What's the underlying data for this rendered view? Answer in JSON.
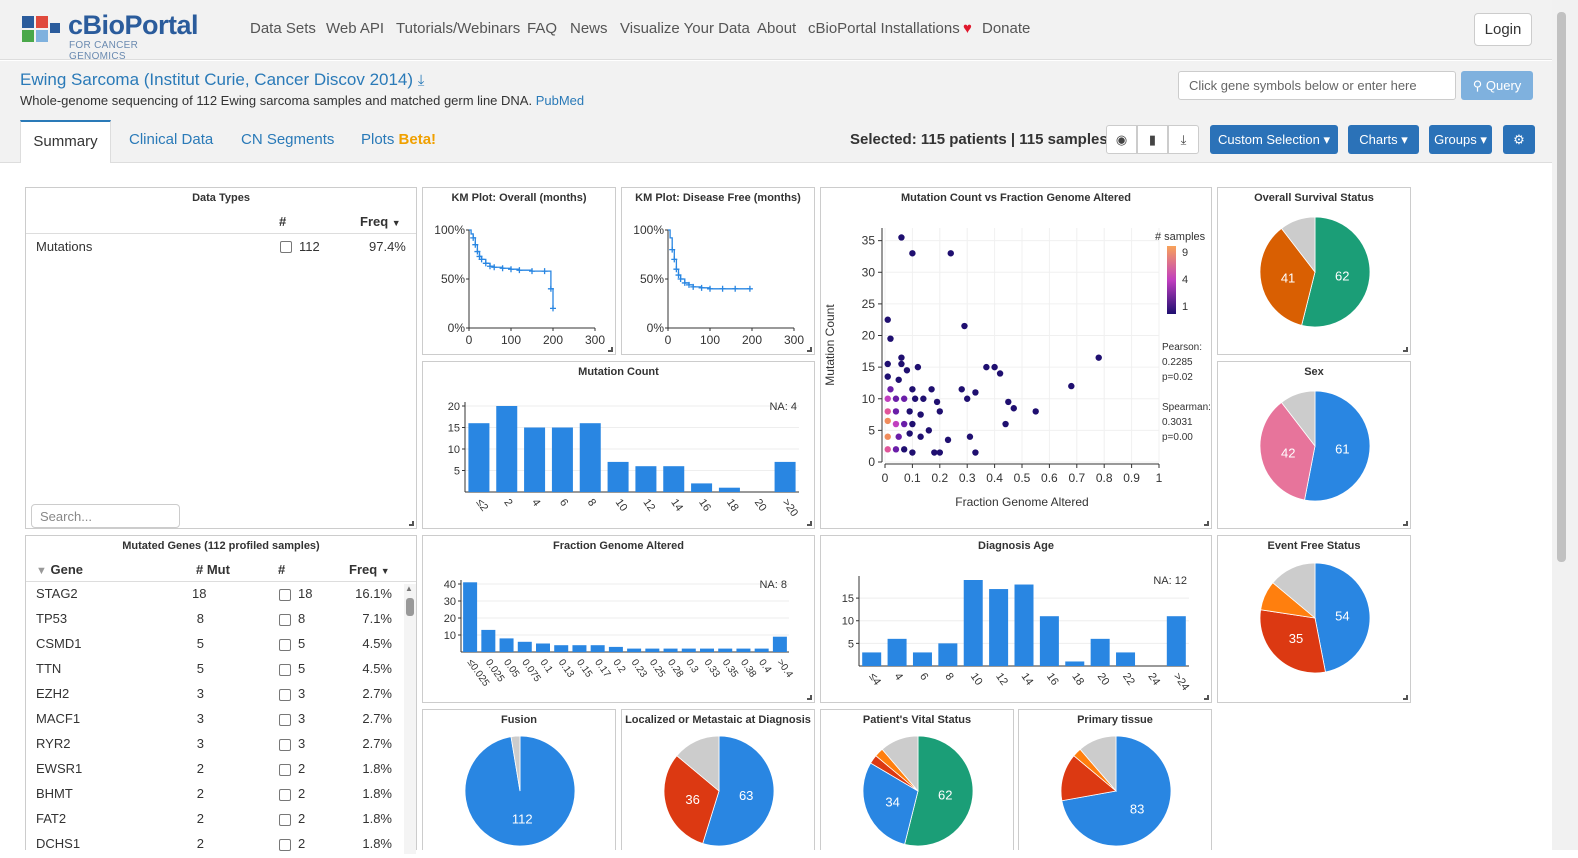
{
  "app": {
    "brand": "cBioPortal",
    "brand_sub": "FOR CANCER GENOMICS",
    "nav": [
      "Data Sets",
      "Web API",
      "Tutorials/Webinars",
      "FAQ",
      "News",
      "Visualize Your Data",
      "About",
      "cBioPortal Installations",
      "Donate"
    ],
    "login": "Login"
  },
  "study": {
    "title": "Ewing Sarcoma (Institut Curie, Cancer Discov 2014)",
    "description": "Whole-genome sequencing of 112 Ewing sarcoma samples and matched germ line DNA.",
    "pubmed": "PubMed",
    "gene_placeholder": "Click gene symbols below or enter here",
    "query_label": "Query"
  },
  "tabs": {
    "summary": "Summary",
    "clinical": "Clinical Data",
    "cn": "CN Segments",
    "plots": "Plots",
    "plots_badge": "Beta!"
  },
  "toolbar": {
    "selected": "Selected: 115 patients | 115 samples",
    "custom_selection": "Custom Selection",
    "charts": "Charts",
    "groups": "Groups"
  },
  "data_types": {
    "title": "Data Types",
    "col_count": "#",
    "col_freq": "Freq",
    "rows": [
      {
        "name": "Mutations",
        "count": "112",
        "freq": "97.4%"
      }
    ],
    "search_placeholder": "Search..."
  },
  "mutated_genes": {
    "title": "Mutated Genes (112 profiled samples)",
    "col_gene": "Gene",
    "col_mut": "# Mut",
    "col_count": "#",
    "col_freq": "Freq",
    "rows": [
      {
        "gene": "STAG2",
        "mut": "18",
        "count": "18",
        "freq": "16.1%"
      },
      {
        "gene": "TP53",
        "mut": "8",
        "count": "8",
        "freq": "7.1%"
      },
      {
        "gene": "CSMD1",
        "mut": "5",
        "count": "5",
        "freq": "4.5%"
      },
      {
        "gene": "TTN",
        "mut": "5",
        "count": "5",
        "freq": "4.5%"
      },
      {
        "gene": "EZH2",
        "mut": "3",
        "count": "3",
        "freq": "2.7%"
      },
      {
        "gene": "MACF1",
        "mut": "3",
        "count": "3",
        "freq": "2.7%"
      },
      {
        "gene": "RYR2",
        "mut": "3",
        "count": "3",
        "freq": "2.7%"
      },
      {
        "gene": "EWSR1",
        "mut": "2",
        "count": "2",
        "freq": "1.8%"
      },
      {
        "gene": "BHMT",
        "mut": "2",
        "count": "2",
        "freq": "1.8%"
      },
      {
        "gene": "FAT2",
        "mut": "2",
        "count": "2",
        "freq": "1.8%"
      },
      {
        "gene": "DCHS1",
        "mut": "2",
        "count": "2",
        "freq": "1.8%"
      }
    ]
  },
  "panels": {
    "km_overall": "KM Plot: Overall (months)",
    "km_disease_free": "KM Plot: Disease Free (months)",
    "scatter": "Mutation Count vs Fraction Genome Altered",
    "overall_survival": "Overall Survival Status",
    "mutation_count": "Mutation Count",
    "sex": "Sex",
    "fga": "Fraction Genome Altered",
    "diagnosis_age": "Diagnosis Age",
    "event_free": "Event Free Status",
    "fusion": "Fusion",
    "localized": "Localized or Metastaic at Diagnosis",
    "vital": "Patient's Vital Status",
    "primary": "Primary tissue"
  },
  "colors": {
    "blue": "#2986e2",
    "green": "#1b9e77",
    "orange_dark": "#d95f02",
    "pink": "#e7749b",
    "red": "#dc3912",
    "orange": "#ff7f0e",
    "gray": "#cccccc",
    "light_blue": "#ebf3fa"
  },
  "chart_data": [
    {
      "type": "line",
      "title": "KM Plot: Overall (months)",
      "xticks": [
        "0",
        "100",
        "200",
        "300"
      ],
      "yticks": [
        "0%",
        "50%",
        "100%"
      ],
      "xlim": [
        0,
        300
      ],
      "ylim": [
        0,
        100
      ],
      "x": [
        0,
        5,
        10,
        15,
        20,
        25,
        30,
        40,
        50,
        60,
        80,
        100,
        120,
        150,
        180,
        195,
        200
      ],
      "y": [
        100,
        96,
        92,
        85,
        78,
        73,
        70,
        66,
        63,
        62,
        61,
        60,
        59,
        58,
        58,
        40,
        20
      ]
    },
    {
      "type": "line",
      "title": "KM Plot: Disease Free (months)",
      "xticks": [
        "0",
        "100",
        "200",
        "300"
      ],
      "yticks": [
        "0%",
        "50%",
        "100%"
      ],
      "xlim": [
        0,
        300
      ],
      "ylim": [
        0,
        100
      ],
      "x": [
        0,
        5,
        10,
        15,
        20,
        25,
        30,
        40,
        50,
        60,
        80,
        100,
        130,
        160,
        195
      ],
      "y": [
        100,
        92,
        80,
        70,
        60,
        54,
        50,
        46,
        44,
        42,
        41,
        40,
        40,
        40,
        40
      ]
    },
    {
      "type": "bar",
      "title": "Mutation Count",
      "categories": [
        "≤2",
        "2",
        "4",
        "6",
        "8",
        "10",
        "12",
        "14",
        "16",
        "18",
        "20",
        ">20"
      ],
      "values": [
        16,
        20,
        15,
        15,
        16,
        7,
        6,
        6,
        2,
        1,
        0,
        7
      ],
      "ylim": [
        0,
        20
      ],
      "yticks": [
        5,
        10,
        15,
        20
      ],
      "annotation": "NA: 4"
    },
    {
      "type": "bar",
      "title": "Fraction Genome Altered",
      "categories": [
        "≤0.025",
        "0.025",
        "0.05",
        "0.075",
        "0.1",
        "0.13",
        "0.15",
        "0.17",
        "0.2",
        "0.23",
        "0.25",
        "0.28",
        "0.3",
        "0.33",
        "0.35",
        "0.38",
        "0.4",
        ">0.4"
      ],
      "values": [
        41,
        13,
        8,
        6,
        5,
        4,
        4,
        4,
        3,
        2,
        2,
        2,
        2,
        2,
        2,
        2,
        2,
        9
      ],
      "ylim": [
        0,
        40
      ],
      "yticks": [
        10,
        20,
        30,
        40
      ],
      "annotation": "NA: 8"
    },
    {
      "type": "bar",
      "title": "Diagnosis Age",
      "categories": [
        "≤4",
        "4",
        "6",
        "8",
        "10",
        "12",
        "14",
        "16",
        "18",
        "20",
        "22",
        "24",
        ">24"
      ],
      "values": [
        3,
        6,
        3,
        5,
        19,
        17,
        18,
        11,
        1,
        6,
        3,
        0,
        11
      ],
      "ylim": [
        0,
        19
      ],
      "yticks": [
        5,
        10,
        15
      ],
      "annotation": "NA: 12"
    },
    {
      "type": "scatter",
      "title": "Mutation Count vs Fraction Genome Altered",
      "xlabel": "Fraction Genome Altered",
      "ylabel": "Mutation Count",
      "xticks": [
        "0",
        "0.1",
        "0.2",
        "0.3",
        "0.4",
        "0.5",
        "0.6",
        "0.7",
        "0.8",
        "0.9",
        "1"
      ],
      "yticks": [
        "0",
        "5",
        "10",
        "15",
        "20",
        "25",
        "30",
        "35"
      ],
      "xlim": [
        0,
        1
      ],
      "ylim": [
        0,
        37
      ],
      "legend_title": "# samples",
      "legend_ticks": [
        "9",
        "4",
        "1"
      ],
      "pearson_label": "Pearson:",
      "pearson": "0.2285",
      "pearson_p": "p=0.02",
      "spearman_label": "Spearman:",
      "spearman": "0.3031",
      "spearman_p": "p=0.00",
      "points": [
        {
          "x": 0.06,
          "y": 35.5,
          "n": 1
        },
        {
          "x": 0.1,
          "y": 33,
          "n": 1
        },
        {
          "x": 0.24,
          "y": 33,
          "n": 1
        },
        {
          "x": 0.01,
          "y": 22.5,
          "n": 1
        },
        {
          "x": 0.29,
          "y": 21.5,
          "n": 1
        },
        {
          "x": 0.02,
          "y": 19.5,
          "n": 1
        },
        {
          "x": 0.06,
          "y": 16.5,
          "n": 1
        },
        {
          "x": 0.01,
          "y": 15.5,
          "n": 1
        },
        {
          "x": 0.06,
          "y": 15.5,
          "n": 1
        },
        {
          "x": 0.12,
          "y": 15,
          "n": 1
        },
        {
          "x": 0.08,
          "y": 14.5,
          "n": 1
        },
        {
          "x": 0.37,
          "y": 15,
          "n": 1
        },
        {
          "x": 0.4,
          "y": 15,
          "n": 1
        },
        {
          "x": 0.42,
          "y": 14,
          "n": 1
        },
        {
          "x": 0.78,
          "y": 16.5,
          "n": 1
        },
        {
          "x": 0.01,
          "y": 13.5,
          "n": 1
        },
        {
          "x": 0.05,
          "y": 13,
          "n": 1
        },
        {
          "x": 0.68,
          "y": 12,
          "n": 1
        },
        {
          "x": 0.02,
          "y": 11.5,
          "n": 2
        },
        {
          "x": 0.1,
          "y": 11.5,
          "n": 1
        },
        {
          "x": 0.17,
          "y": 11.5,
          "n": 1
        },
        {
          "x": 0.28,
          "y": 11.5,
          "n": 1
        },
        {
          "x": 0.33,
          "y": 11,
          "n": 1
        },
        {
          "x": 0.3,
          "y": 10,
          "n": 1
        },
        {
          "x": 0.45,
          "y": 9.5,
          "n": 1
        },
        {
          "x": 0.01,
          "y": 10,
          "n": 5
        },
        {
          "x": 0.04,
          "y": 10,
          "n": 3
        },
        {
          "x": 0.07,
          "y": 10,
          "n": 2
        },
        {
          "x": 0.11,
          "y": 10,
          "n": 1
        },
        {
          "x": 0.14,
          "y": 10,
          "n": 1
        },
        {
          "x": 0.19,
          "y": 9.5,
          "n": 1
        },
        {
          "x": 0.47,
          "y": 8.5,
          "n": 1
        },
        {
          "x": 0.55,
          "y": 8,
          "n": 1
        },
        {
          "x": 0.01,
          "y": 8,
          "n": 7
        },
        {
          "x": 0.04,
          "y": 8,
          "n": 3
        },
        {
          "x": 0.09,
          "y": 8,
          "n": 1
        },
        {
          "x": 0.13,
          "y": 7.5,
          "n": 1
        },
        {
          "x": 0.2,
          "y": 8,
          "n": 1
        },
        {
          "x": 0.44,
          "y": 6,
          "n": 1
        },
        {
          "x": 0.01,
          "y": 6.5,
          "n": 9
        },
        {
          "x": 0.04,
          "y": 6,
          "n": 4
        },
        {
          "x": 0.07,
          "y": 6,
          "n": 2
        },
        {
          "x": 0.1,
          "y": 6,
          "n": 1
        },
        {
          "x": 0.16,
          "y": 5,
          "n": 1
        },
        {
          "x": 0.01,
          "y": 4,
          "n": 8
        },
        {
          "x": 0.05,
          "y": 4,
          "n": 3
        },
        {
          "x": 0.09,
          "y": 4.5,
          "n": 1
        },
        {
          "x": 0.13,
          "y": 4,
          "n": 1
        },
        {
          "x": 0.31,
          "y": 4,
          "n": 1
        },
        {
          "x": 0.01,
          "y": 2,
          "n": 6
        },
        {
          "x": 0.04,
          "y": 2,
          "n": 2
        },
        {
          "x": 0.07,
          "y": 2,
          "n": 1
        },
        {
          "x": 0.1,
          "y": 1.5,
          "n": 1
        },
        {
          "x": 0.18,
          "y": 1.5,
          "n": 1
        },
        {
          "x": 0.2,
          "y": 1.5,
          "n": 1
        },
        {
          "x": 0.33,
          "y": 1.5,
          "n": 1
        },
        {
          "x": 0.23,
          "y": 3.5,
          "n": 1
        }
      ]
    },
    {
      "type": "pie",
      "title": "Overall Survival Status",
      "slices": [
        {
          "label": "62",
          "value": 62,
          "color": "#1b9e77"
        },
        {
          "label": "41",
          "value": 41,
          "color": "#d95f02"
        },
        {
          "label": "",
          "value": 12,
          "color": "#cccccc"
        }
      ]
    },
    {
      "type": "pie",
      "title": "Sex",
      "slices": [
        {
          "label": "61",
          "value": 61,
          "color": "#2986e2"
        },
        {
          "label": "42",
          "value": 42,
          "color": "#e7749b"
        },
        {
          "label": "",
          "value": 12,
          "color": "#cccccc"
        }
      ]
    },
    {
      "type": "pie",
      "title": "Event Free Status",
      "slices": [
        {
          "label": "54",
          "value": 54,
          "color": "#2986e2"
        },
        {
          "label": "35",
          "value": 35,
          "color": "#dc3912"
        },
        {
          "label": "",
          "value": 10,
          "color": "#ff7f0e"
        },
        {
          "label": "",
          "value": 16,
          "color": "#cccccc"
        }
      ]
    },
    {
      "type": "pie",
      "title": "Fusion",
      "slices": [
        {
          "label": "112",
          "value": 112,
          "color": "#2986e2"
        },
        {
          "label": "",
          "value": 3,
          "color": "#cccccc"
        }
      ]
    },
    {
      "type": "pie",
      "title": "Localized or Metastaic at Diagnosis",
      "slices": [
        {
          "label": "63",
          "value": 63,
          "color": "#2986e2"
        },
        {
          "label": "36",
          "value": 36,
          "color": "#dc3912"
        },
        {
          "label": "",
          "value": 16,
          "color": "#cccccc"
        }
      ]
    },
    {
      "type": "pie",
      "title": "Patient's Vital Status",
      "slices": [
        {
          "label": "62",
          "value": 62,
          "color": "#1b9e77"
        },
        {
          "label": "34",
          "value": 34,
          "color": "#2986e2"
        },
        {
          "label": "",
          "value": 3,
          "color": "#dc3912"
        },
        {
          "label": "",
          "value": 3,
          "color": "#ff7f0e"
        },
        {
          "label": "",
          "value": 13,
          "color": "#cccccc"
        }
      ]
    },
    {
      "type": "pie",
      "title": "Primary tissue",
      "slices": [
        {
          "label": "83",
          "value": 83,
          "color": "#2986e2"
        },
        {
          "label": "",
          "value": 16,
          "color": "#dc3912"
        },
        {
          "label": "",
          "value": 3,
          "color": "#ff7f0e"
        },
        {
          "label": "",
          "value": 13,
          "color": "#cccccc"
        }
      ]
    }
  ]
}
